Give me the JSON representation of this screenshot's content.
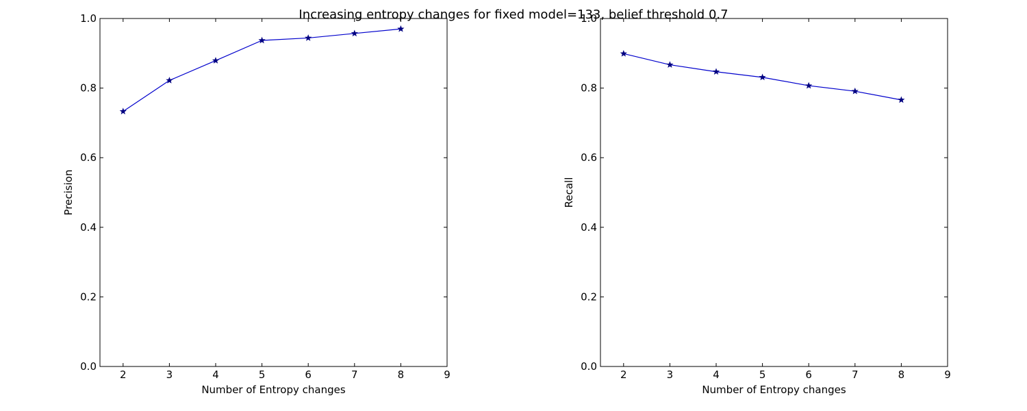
{
  "figure": {
    "title": "Increasing entropy changes for fixed model=133, belief threshold 0.7"
  },
  "colors": {
    "line": "#0000cc",
    "marker": "#000080",
    "axes": "#000000"
  },
  "chart_data": [
    {
      "type": "line",
      "title": "",
      "xlabel": "Number of Entropy changes",
      "ylabel": "Precision",
      "xlim": [
        1.5,
        9
      ],
      "ylim": [
        0.0,
        1.0
      ],
      "xticks": [
        2,
        3,
        4,
        5,
        6,
        7,
        8,
        9
      ],
      "yticks": [
        0.0,
        0.2,
        0.4,
        0.6,
        0.8,
        1.0
      ],
      "grid": false,
      "marker": "star",
      "series": [
        {
          "x": [
            2,
            3,
            4,
            5,
            6,
            7,
            8
          ],
          "values": [
            0.733,
            0.822,
            0.879,
            0.937,
            0.944,
            0.957,
            0.97
          ]
        }
      ]
    },
    {
      "type": "line",
      "title": "",
      "xlabel": "Number of Entropy changes",
      "ylabel": "Recall",
      "xlim": [
        1.5,
        9
      ],
      "ylim": [
        0.0,
        1.0
      ],
      "xticks": [
        2,
        3,
        4,
        5,
        6,
        7,
        8,
        9
      ],
      "yticks": [
        0.0,
        0.2,
        0.4,
        0.6,
        0.8,
        1.0
      ],
      "grid": false,
      "marker": "star",
      "series": [
        {
          "x": [
            2,
            3,
            4,
            5,
            6,
            7,
            8
          ],
          "values": [
            0.899,
            0.867,
            0.847,
            0.831,
            0.807,
            0.791,
            0.766
          ]
        }
      ]
    }
  ]
}
